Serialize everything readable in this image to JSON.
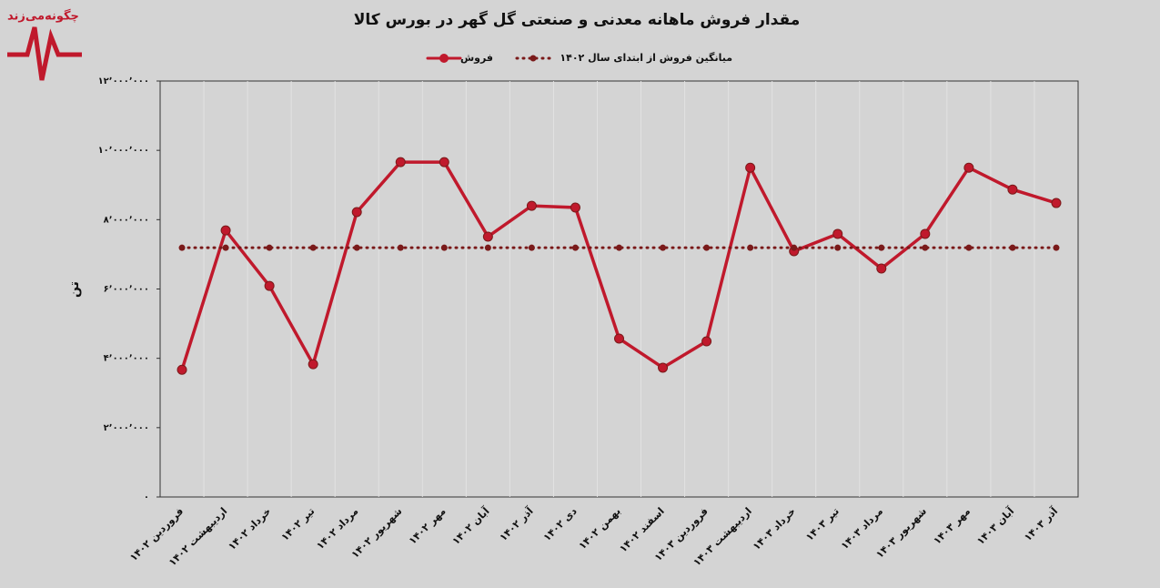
{
  "logo": {
    "tagline": "چگونه‌می‌زند"
  },
  "chart_data": {
    "type": "line",
    "title": "مقدار فروش ماهانه معدنی و صنعتی گل گهر در بورس کالا",
    "y_label": "تن",
    "categories": [
      "فروردین ۱۴۰۲",
      "اردیبهشت ۱۴۰۲",
      "خرداد ۱۴۰۲",
      "تیر ۱۴۰۲",
      "مرداد ۱۴۰۲",
      "شهریور ۱۴۰۲",
      "مهر ۱۴۰۲",
      "آبان ۱۴۰۲",
      "آذر ۱۴۰۲",
      "دی ۱۴۰۲",
      "بهمن ۱۴۰۲",
      "اسفند ۱۴۰۲",
      "فروردین ۱۴۰۳",
      "اردیبهشت ۱۴۰۳",
      "خرداد ۱۴۰۳",
      "تیر ۱۴۰۳",
      "مرداد ۱۴۰۳",
      "شهریور ۱۴۰۳",
      "مهر ۱۴۰۳",
      "آبان ۱۴۰۳",
      "آذر ۱۴۰۳"
    ],
    "series": [
      {
        "name": "فروش",
        "color": "#c0192c",
        "style": "solid",
        "values": [
          3670000,
          7690000,
          6090000,
          3830000,
          8220000,
          9660000,
          9660000,
          7510000,
          8400000,
          8350000,
          4570000,
          3730000,
          4490000,
          9500000,
          7090000,
          7590000,
          6590000,
          7590000,
          9500000,
          8870000,
          8480000
        ]
      },
      {
        "name": "میانگین فروش از ابتدای سال ۱۴۰۲",
        "color": "#7a1a1a",
        "style": "dotted",
        "values": [
          7190000,
          7190000,
          7190000,
          7190000,
          7190000,
          7190000,
          7190000,
          7190000,
          7190000,
          7190000,
          7190000,
          7190000,
          7190000,
          7190000,
          7190000,
          7190000,
          7190000,
          7190000,
          7190000,
          7190000,
          7190000
        ]
      }
    ],
    "ylim": [
      0,
      12000000
    ],
    "yticks": [
      {
        "value": 0,
        "label": "۰"
      },
      {
        "value": 2000000,
        "label": "۲٬۰۰۰٬۰۰۰"
      },
      {
        "value": 4000000,
        "label": "۴٬۰۰۰٬۰۰۰"
      },
      {
        "value": 6000000,
        "label": "۶٬۰۰۰٬۰۰۰"
      },
      {
        "value": 8000000,
        "label": "۸٬۰۰۰٬۰۰۰"
      },
      {
        "value": 10000000,
        "label": "۱۰٬۰۰۰٬۰۰۰"
      },
      {
        "value": 12000000,
        "label": "۱۲٬۰۰۰٬۰۰۰"
      }
    ]
  }
}
